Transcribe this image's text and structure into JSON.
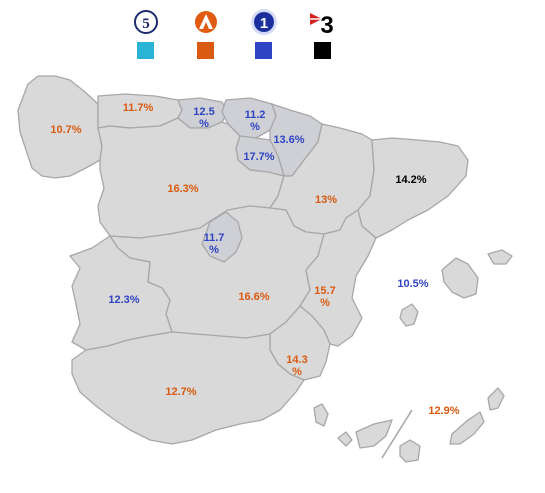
{
  "legend": [
    {
      "channel": "Cuatro",
      "logo_text": "5",
      "color": "#2ab3d4"
    },
    {
      "channel": "Antena 3",
      "logo_text": "",
      "color": "#d95a10"
    },
    {
      "channel": "La 1",
      "logo_text": "1",
      "color": "#2f44c4"
    },
    {
      "channel": "TV3",
      "logo_text": "3",
      "color": "#000000"
    }
  ],
  "regions": [
    {
      "id": "galicia",
      "value": "10.7%",
      "color": "#d95a10"
    },
    {
      "id": "asturias",
      "value": "11.7%",
      "color": "#d95a10"
    },
    {
      "id": "cantabria",
      "value_line1": "12.5",
      "value_line2": "%",
      "color": "#2f44c4"
    },
    {
      "id": "pais-vasco",
      "value_line1": "11.2",
      "value_line2": "%",
      "color": "#2f44c4"
    },
    {
      "id": "navarra",
      "value": "13.6%",
      "color": "#2f44c4"
    },
    {
      "id": "la-rioja",
      "value": "17.7%",
      "color": "#2f44c4"
    },
    {
      "id": "castilla-leon",
      "value": "16.3%",
      "color": "#d95a10"
    },
    {
      "id": "aragon",
      "value": "13%",
      "color": "#d95a10"
    },
    {
      "id": "cataluna",
      "value": "14.2%",
      "color": "#000000"
    },
    {
      "id": "madrid",
      "value_line1": "11.7",
      "value_line2": "%",
      "color": "#2f44c4"
    },
    {
      "id": "extremadura",
      "value": "12.3%",
      "color": "#2f44c4"
    },
    {
      "id": "castilla-la-mancha",
      "value": "16.6%",
      "color": "#d95a10"
    },
    {
      "id": "valencia",
      "value_line1": "15.7",
      "value_line2": "%",
      "color": "#d95a10"
    },
    {
      "id": "baleares",
      "value": "10.5%",
      "color": "#2f44c4"
    },
    {
      "id": "murcia",
      "value_line1": "14.3",
      "value_line2": "%",
      "color": "#d95a10"
    },
    {
      "id": "andalucia",
      "value": "12.7%",
      "color": "#d95a10"
    },
    {
      "id": "canarias",
      "value": "12.9%",
      "color": "#d95a10"
    }
  ]
}
